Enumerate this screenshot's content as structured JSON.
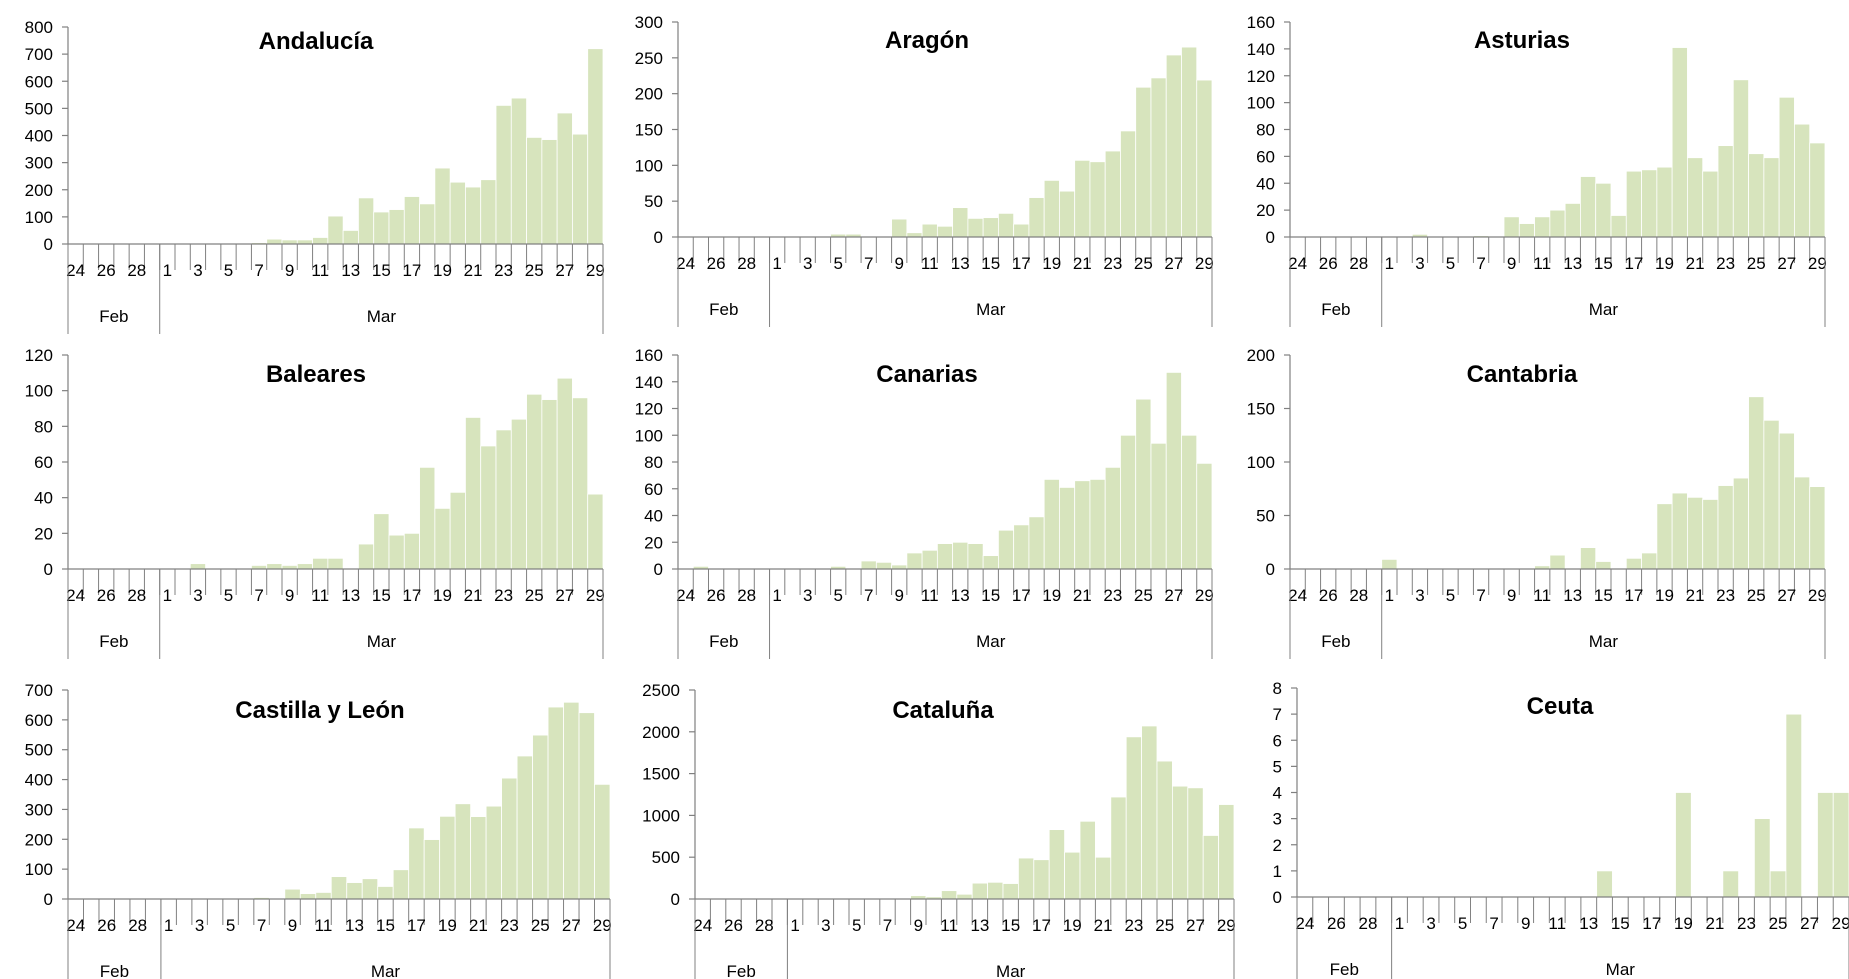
{
  "style": {
    "bar_color": "#d7e4bd",
    "bar_edge": "#ffffff",
    "axis_color": "#808080"
  },
  "chart_data": [
    {
      "type": "bar",
      "title": "Andalucía",
      "ylim": [
        0,
        800
      ],
      "yticks": [
        0,
        100,
        200,
        300,
        400,
        500,
        600,
        700,
        800
      ],
      "x": [
        "24",
        "25",
        "26",
        "27",
        "28",
        "29",
        "1",
        "2",
        "3",
        "4",
        "5",
        "6",
        "7",
        "8",
        "9",
        "10",
        "11",
        "12",
        "13",
        "14",
        "15",
        "16",
        "17",
        "18",
        "19",
        "20",
        "21",
        "22",
        "23",
        "24",
        "25",
        "26",
        "27",
        "28",
        "29"
      ],
      "xtick_labels": [
        "24",
        "26",
        "28",
        "1",
        "3",
        "5",
        "7",
        "9",
        "11",
        "13",
        "15",
        "17",
        "19",
        "21",
        "23",
        "25",
        "27",
        "29"
      ],
      "months": [
        {
          "label": "Feb",
          "count": 6
        },
        {
          "label": "Mar",
          "count": 29
        }
      ],
      "values": [
        0,
        0,
        0,
        0,
        0,
        0,
        0,
        0,
        0,
        0,
        3,
        2,
        5,
        18,
        15,
        15,
        24,
        103,
        50,
        170,
        118,
        127,
        175,
        148,
        280,
        228,
        210,
        237,
        511,
        538,
        393,
        385,
        483,
        405,
        720
      ]
    },
    {
      "type": "bar",
      "title": "Aragón",
      "ylim": [
        0,
        300
      ],
      "yticks": [
        0,
        50,
        100,
        150,
        200,
        250,
        300
      ],
      "x": [
        "24",
        "25",
        "26",
        "27",
        "28",
        "29",
        "1",
        "2",
        "3",
        "4",
        "5",
        "6",
        "7",
        "8",
        "9",
        "10",
        "11",
        "12",
        "13",
        "14",
        "15",
        "16",
        "17",
        "18",
        "19",
        "20",
        "21",
        "22",
        "23",
        "24",
        "25",
        "26",
        "27",
        "28",
        "29"
      ],
      "xtick_labels": [
        "24",
        "26",
        "28",
        "1",
        "3",
        "5",
        "7",
        "9",
        "11",
        "13",
        "15",
        "17",
        "19",
        "21",
        "23",
        "25",
        "27",
        "29"
      ],
      "months": [
        {
          "label": "Feb",
          "count": 6
        },
        {
          "label": "Mar",
          "count": 29
        }
      ],
      "values": [
        0,
        0,
        0,
        0,
        0,
        0,
        0,
        0,
        0,
        0,
        4,
        4,
        0,
        0,
        25,
        6,
        18,
        15,
        41,
        26,
        27,
        33,
        18,
        55,
        79,
        64,
        107,
        105,
        120,
        148,
        209,
        222,
        254,
        265,
        219
      ]
    },
    {
      "type": "bar",
      "title": "Asturias",
      "ylim": [
        0,
        160
      ],
      "yticks": [
        0,
        20,
        40,
        60,
        80,
        100,
        120,
        140,
        160
      ],
      "x": [
        "24",
        "25",
        "26",
        "27",
        "28",
        "29",
        "1",
        "2",
        "3",
        "4",
        "5",
        "6",
        "7",
        "8",
        "9",
        "10",
        "11",
        "12",
        "13",
        "14",
        "15",
        "16",
        "17",
        "18",
        "19",
        "20",
        "21",
        "22",
        "23",
        "24",
        "25",
        "26",
        "27",
        "28",
        "29"
      ],
      "xtick_labels": [
        "24",
        "26",
        "28",
        "1",
        "3",
        "5",
        "7",
        "9",
        "11",
        "13",
        "15",
        "17",
        "19",
        "21",
        "23",
        "25",
        "27",
        "29"
      ],
      "months": [
        {
          "label": "Feb",
          "count": 6
        },
        {
          "label": "Mar",
          "count": 29
        }
      ],
      "values": [
        0,
        0,
        0,
        0,
        0,
        0,
        0,
        0,
        2,
        0,
        0,
        0,
        1,
        0,
        15,
        10,
        15,
        20,
        25,
        45,
        40,
        16,
        49,
        50,
        52,
        141,
        59,
        49,
        68,
        117,
        62,
        59,
        104,
        84,
        70
      ]
    },
    {
      "type": "bar",
      "title": "Baleares",
      "ylim": [
        0,
        120
      ],
      "yticks": [
        0,
        20,
        40,
        60,
        80,
        100,
        120
      ],
      "x": [
        "24",
        "25",
        "26",
        "27",
        "28",
        "29",
        "1",
        "2",
        "3",
        "4",
        "5",
        "6",
        "7",
        "8",
        "9",
        "10",
        "11",
        "12",
        "13",
        "14",
        "15",
        "16",
        "17",
        "18",
        "19",
        "20",
        "21",
        "22",
        "23",
        "24",
        "25",
        "26",
        "27",
        "28",
        "29"
      ],
      "xtick_labels": [
        "24",
        "26",
        "28",
        "1",
        "3",
        "5",
        "7",
        "9",
        "11",
        "13",
        "15",
        "17",
        "19",
        "21",
        "23",
        "25",
        "27",
        "29"
      ],
      "months": [
        {
          "label": "Feb",
          "count": 6
        },
        {
          "label": "Mar",
          "count": 29
        }
      ],
      "values": [
        0,
        0,
        0,
        0,
        0,
        0,
        0,
        0,
        3,
        0,
        0,
        0,
        2,
        3,
        2,
        3,
        6,
        6,
        0,
        14,
        31,
        19,
        20,
        57,
        34,
        43,
        85,
        69,
        78,
        84,
        98,
        95,
        107,
        96,
        42
      ]
    },
    {
      "type": "bar",
      "title": "Canarias",
      "ylim": [
        0,
        160
      ],
      "yticks": [
        0,
        20,
        40,
        60,
        80,
        100,
        120,
        140,
        160
      ],
      "x": [
        "24",
        "25",
        "26",
        "27",
        "28",
        "29",
        "1",
        "2",
        "3",
        "4",
        "5",
        "6",
        "7",
        "8",
        "9",
        "10",
        "11",
        "12",
        "13",
        "14",
        "15",
        "16",
        "17",
        "18",
        "19",
        "20",
        "21",
        "22",
        "23",
        "24",
        "25",
        "26",
        "27",
        "28",
        "29"
      ],
      "xtick_labels": [
        "24",
        "26",
        "28",
        "1",
        "3",
        "5",
        "7",
        "9",
        "11",
        "13",
        "15",
        "17",
        "19",
        "21",
        "23",
        "25",
        "27",
        "29"
      ],
      "months": [
        {
          "label": "Feb",
          "count": 6
        },
        {
          "label": "Mar",
          "count": 29
        }
      ],
      "values": [
        0,
        2,
        0,
        0,
        0,
        0,
        0,
        0,
        0,
        0,
        2,
        0,
        6,
        5,
        3,
        12,
        14,
        19,
        20,
        19,
        10,
        29,
        33,
        39,
        67,
        61,
        66,
        67,
        76,
        100,
        127,
        94,
        147,
        100,
        79
      ]
    },
    {
      "type": "bar",
      "title": "Cantabria",
      "ylim": [
        0,
        200
      ],
      "yticks": [
        0,
        50,
        100,
        150,
        200
      ],
      "x": [
        "24",
        "25",
        "26",
        "27",
        "28",
        "29",
        "1",
        "2",
        "3",
        "4",
        "5",
        "6",
        "7",
        "8",
        "9",
        "10",
        "11",
        "12",
        "13",
        "14",
        "15",
        "16",
        "17",
        "18",
        "19",
        "20",
        "21",
        "22",
        "23",
        "24",
        "25",
        "26",
        "27",
        "28",
        "29"
      ],
      "xtick_labels": [
        "24",
        "26",
        "28",
        "1",
        "3",
        "5",
        "7",
        "9",
        "11",
        "13",
        "15",
        "17",
        "19",
        "21",
        "23",
        "25",
        "27",
        "29"
      ],
      "months": [
        {
          "label": "Feb",
          "count": 6
        },
        {
          "label": "Mar",
          "count": 29
        }
      ],
      "values": [
        0,
        0,
        0,
        0,
        0,
        0,
        9,
        0,
        0,
        0,
        0,
        0,
        0,
        0,
        0,
        0,
        3,
        13,
        0,
        20,
        7,
        0,
        10,
        15,
        61,
        71,
        67,
        65,
        78,
        85,
        161,
        139,
        127,
        86,
        77
      ]
    },
    {
      "type": "bar",
      "title": "Castilla y León",
      "ylim": [
        0,
        700
      ],
      "yticks": [
        0,
        100,
        200,
        300,
        400,
        500,
        600,
        700
      ],
      "x": [
        "24",
        "25",
        "26",
        "27",
        "28",
        "29",
        "1",
        "2",
        "3",
        "4",
        "5",
        "6",
        "7",
        "8",
        "9",
        "10",
        "11",
        "12",
        "13",
        "14",
        "15",
        "16",
        "17",
        "18",
        "19",
        "20",
        "21",
        "22",
        "23",
        "24",
        "25",
        "26",
        "27",
        "28",
        "29"
      ],
      "xtick_labels": [
        "24",
        "26",
        "28",
        "1",
        "3",
        "5",
        "7",
        "9",
        "11",
        "13",
        "15",
        "17",
        "19",
        "21",
        "23",
        "25",
        "27",
        "29"
      ],
      "months": [
        {
          "label": "Feb",
          "count": 6
        },
        {
          "label": "Mar",
          "count": 29
        }
      ],
      "values": [
        0,
        0,
        0,
        0,
        0,
        0,
        0,
        0,
        0,
        0,
        0,
        0,
        5,
        0,
        33,
        18,
        22,
        75,
        55,
        68,
        42,
        98,
        238,
        199,
        277,
        319,
        276,
        311,
        405,
        479,
        549,
        643,
        659,
        624,
        384
      ]
    },
    {
      "type": "bar",
      "title": "Cataluña",
      "ylim": [
        0,
        2500
      ],
      "yticks": [
        0,
        500,
        1000,
        1500,
        2000,
        2500
      ],
      "x": [
        "24",
        "25",
        "26",
        "27",
        "28",
        "29",
        "1",
        "2",
        "3",
        "4",
        "5",
        "6",
        "7",
        "8",
        "9",
        "10",
        "11",
        "12",
        "13",
        "14",
        "15",
        "16",
        "17",
        "18",
        "19",
        "20",
        "21",
        "22",
        "23",
        "24",
        "25",
        "26",
        "27",
        "28",
        "29"
      ],
      "xtick_labels": [
        "24",
        "26",
        "28",
        "1",
        "3",
        "5",
        "7",
        "9",
        "11",
        "13",
        "15",
        "17",
        "19",
        "21",
        "23",
        "25",
        "27",
        "29"
      ],
      "months": [
        {
          "label": "Feb",
          "count": 6
        },
        {
          "label": "Mar",
          "count": 29
        }
      ],
      "values": [
        0,
        0,
        0,
        0,
        0,
        0,
        0,
        0,
        0,
        0,
        0,
        0,
        0,
        0,
        40,
        26,
        100,
        57,
        190,
        200,
        185,
        490,
        470,
        830,
        560,
        930,
        500,
        1220,
        1940,
        2070,
        1650,
        1350,
        1330,
        760,
        1130
      ]
    },
    {
      "type": "bar",
      "title": "Ceuta",
      "ylim": [
        0,
        8
      ],
      "yticks": [
        0,
        1,
        2,
        3,
        4,
        5,
        6,
        7,
        8
      ],
      "x": [
        "24",
        "25",
        "26",
        "27",
        "28",
        "29",
        "1",
        "2",
        "3",
        "4",
        "5",
        "6",
        "7",
        "8",
        "9",
        "10",
        "11",
        "12",
        "13",
        "14",
        "15",
        "16",
        "17",
        "18",
        "19",
        "20",
        "21",
        "22",
        "23",
        "24",
        "25",
        "26",
        "27",
        "28",
        "29"
      ],
      "xtick_labels": [
        "24",
        "26",
        "28",
        "1",
        "3",
        "5",
        "7",
        "9",
        "11",
        "13",
        "15",
        "17",
        "19",
        "21",
        "23",
        "25",
        "27",
        "29"
      ],
      "months": [
        {
          "label": "Feb",
          "count": 6
        },
        {
          "label": "Mar",
          "count": 29
        }
      ],
      "values": [
        0,
        0,
        0,
        0,
        0,
        0,
        0,
        0,
        0,
        0,
        0,
        0,
        0,
        0,
        0,
        0,
        0,
        0,
        0,
        1,
        0,
        0,
        0,
        0,
        4,
        0,
        0,
        1,
        0,
        3,
        1,
        7,
        0,
        4,
        4
      ]
    }
  ]
}
